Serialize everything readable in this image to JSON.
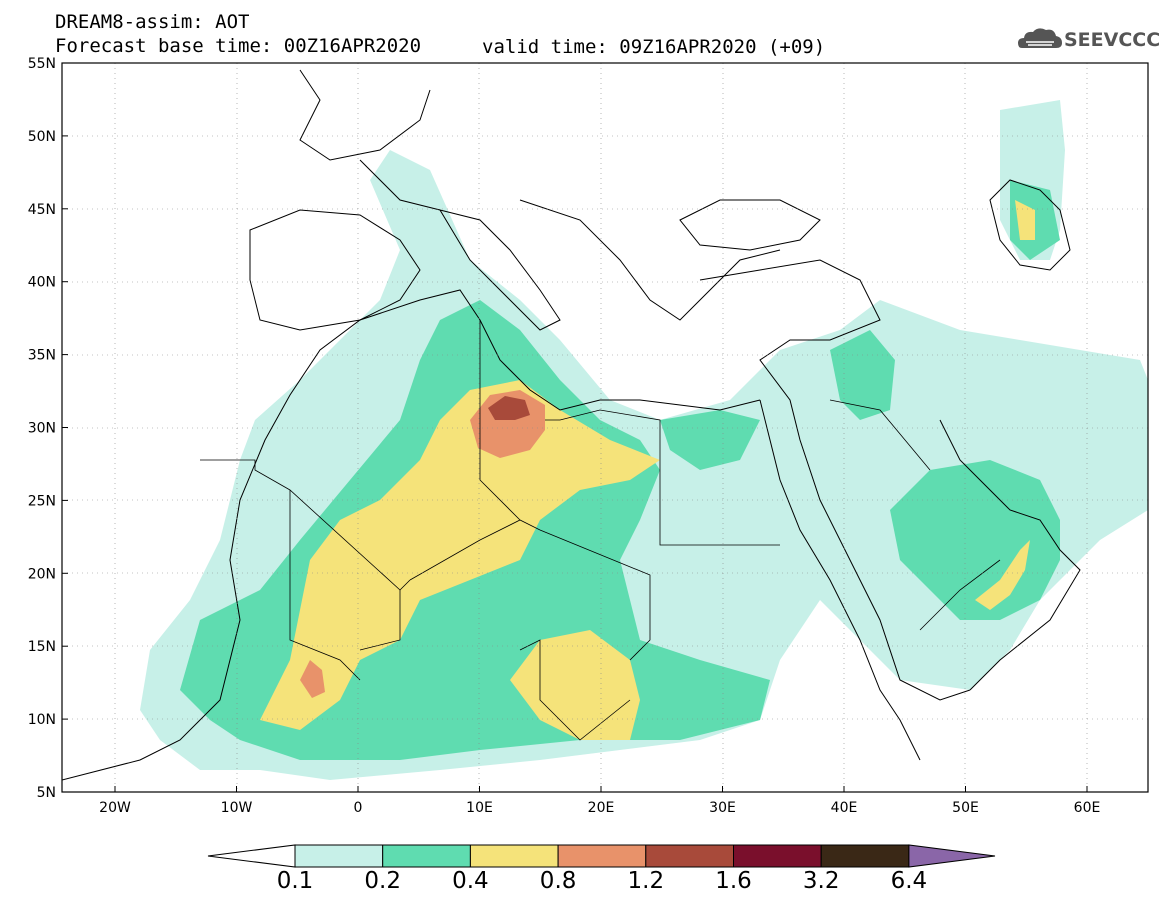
{
  "header": {
    "title_line1": "DREAM8-assim: AOT",
    "title_line2": "Forecast base time: 00Z16APR2020",
    "valid_time": "valid time: 09Z16APR2020 (+09)",
    "logo_text": "SEEVCCC"
  },
  "map": {
    "lat_labels": [
      "55N",
      "50N",
      "45N",
      "40N",
      "35N",
      "30N",
      "25N",
      "20N",
      "15N",
      "10N",
      "5N"
    ],
    "lon_labels": [
      "20W",
      "10W",
      "0",
      "10E",
      "20E",
      "30E",
      "40E",
      "50E",
      "60E"
    ]
  },
  "colorbar": {
    "labels": [
      "0.1",
      "0.2",
      "0.4",
      "0.8",
      "1.2",
      "1.6",
      "3.2",
      "6.4"
    ],
    "colors": [
      "#ffffff",
      "#c7f0e8",
      "#5fdcb0",
      "#f5e37a",
      "#e8926a",
      "#a84a3a",
      "#7a0f2c",
      "#3a2816",
      "#8a66a8"
    ]
  }
}
